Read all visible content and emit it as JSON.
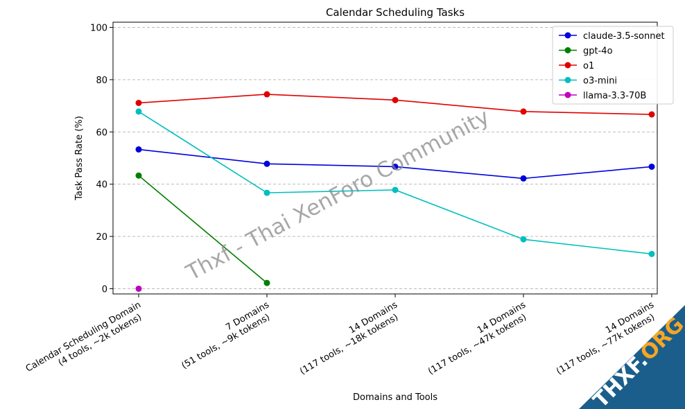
{
  "chart_data": {
    "type": "line",
    "title": "Calendar Scheduling Tasks",
    "xlabel": "Domains and Tools",
    "ylabel": "Task Pass Rate (%)",
    "ylim": [
      -2,
      102
    ],
    "yticks": [
      0,
      20,
      40,
      60,
      80,
      100
    ],
    "grid": "horizontal dashed",
    "legend_position": "top-right",
    "categories": [
      [
        "Calendar Scheduling Domain",
        "(4 tools, ~2k tokens)"
      ],
      [
        "7 Domains",
        "(51 tools, ~9k tokens)"
      ],
      [
        "14 Domains",
        "(117 tools, ~18k tokens)"
      ],
      [
        "14 Domains",
        "(117 tools, ~47k tokens)"
      ],
      [
        "14 Domains",
        "(117 tools, ~77k tokens)"
      ]
    ],
    "series": [
      {
        "name": "claude-3.5-sonnet",
        "color": "#0000dd",
        "values": [
          53.3,
          47.8,
          46.7,
          42.2,
          46.7
        ]
      },
      {
        "name": "gpt-4o",
        "color": "#007f00",
        "values": [
          43.3,
          2.2,
          null,
          null,
          null
        ]
      },
      {
        "name": "o1",
        "color": "#e00000",
        "values": [
          71.1,
          74.4,
          72.2,
          67.8,
          66.7
        ]
      },
      {
        "name": "o3-mini",
        "color": "#00bfbf",
        "values": [
          67.8,
          36.7,
          37.8,
          18.9,
          13.3
        ]
      },
      {
        "name": "llama-3.3-70B",
        "color": "#bf00bf",
        "values": [
          0.0,
          null,
          null,
          null,
          null
        ]
      }
    ]
  },
  "watermark": {
    "text": "Thxf - Thai XenForo Community"
  },
  "corner_badge": {
    "text_main": "THXF.",
    "text_accent": "ORG",
    "bg_color": "#1b5e8c",
    "accent_color": "#f5a623"
  }
}
